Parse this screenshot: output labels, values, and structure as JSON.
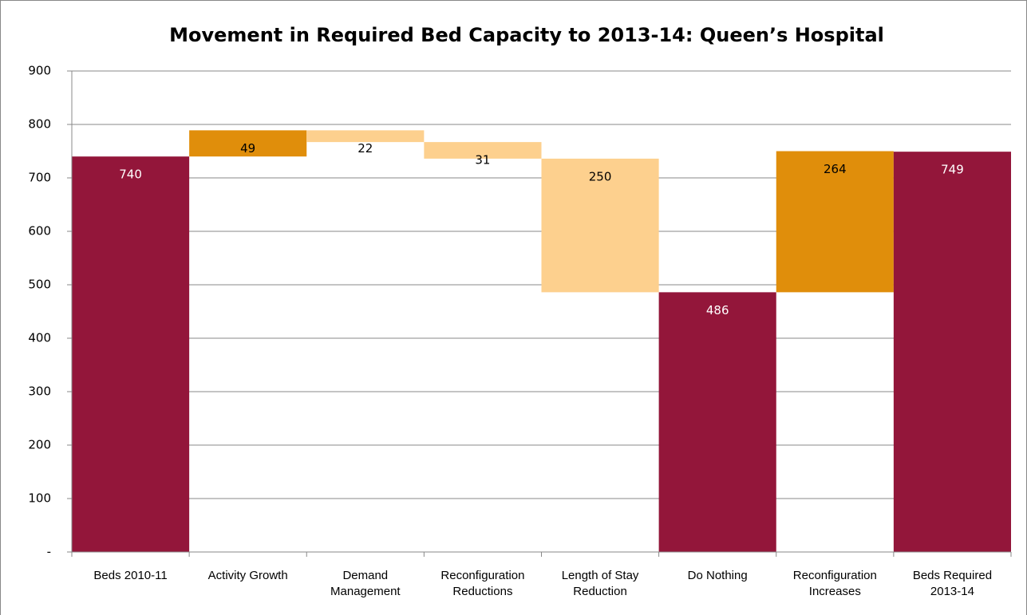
{
  "chart_data": {
    "type": "waterfall",
    "title": "Movement in Required Bed Capacity  to 2013-14: Queen’s Hospital",
    "categories": [
      "Beds 2010-11",
      "Activity Growth",
      "Demand Management",
      "Reconfiguration Reductions",
      "Length of Stay Reduction",
      "Do Nothing",
      "Reconfiguration Increases",
      "Beds Required 2013-14"
    ],
    "measure": [
      "absolute",
      "relative",
      "relative",
      "relative",
      "relative",
      "absolute",
      "relative",
      "absolute"
    ],
    "values": [
      740,
      49,
      -22,
      -31,
      -250,
      486,
      264,
      749
    ],
    "value_labels": [
      "740",
      "49",
      "22",
      "31",
      "250",
      "486",
      "264",
      "749"
    ],
    "colors": [
      "#93163a",
      "#e08e0b",
      "#fdd08e",
      "#fdd08e",
      "#fdd08e",
      "#93163a",
      "#e08e0b",
      "#93163a"
    ],
    "label_colors": [
      "#ffffff",
      "#000000",
      "#000000",
      "#000000",
      "#000000",
      "#ffffff",
      "#000000",
      "#ffffff"
    ],
    "ylim": [
      0,
      900
    ],
    "yticks": [
      {
        "value": 0,
        "label": "-"
      },
      100,
      200,
      300,
      400,
      500,
      600,
      700,
      800,
      900
    ],
    "grid": true
  }
}
